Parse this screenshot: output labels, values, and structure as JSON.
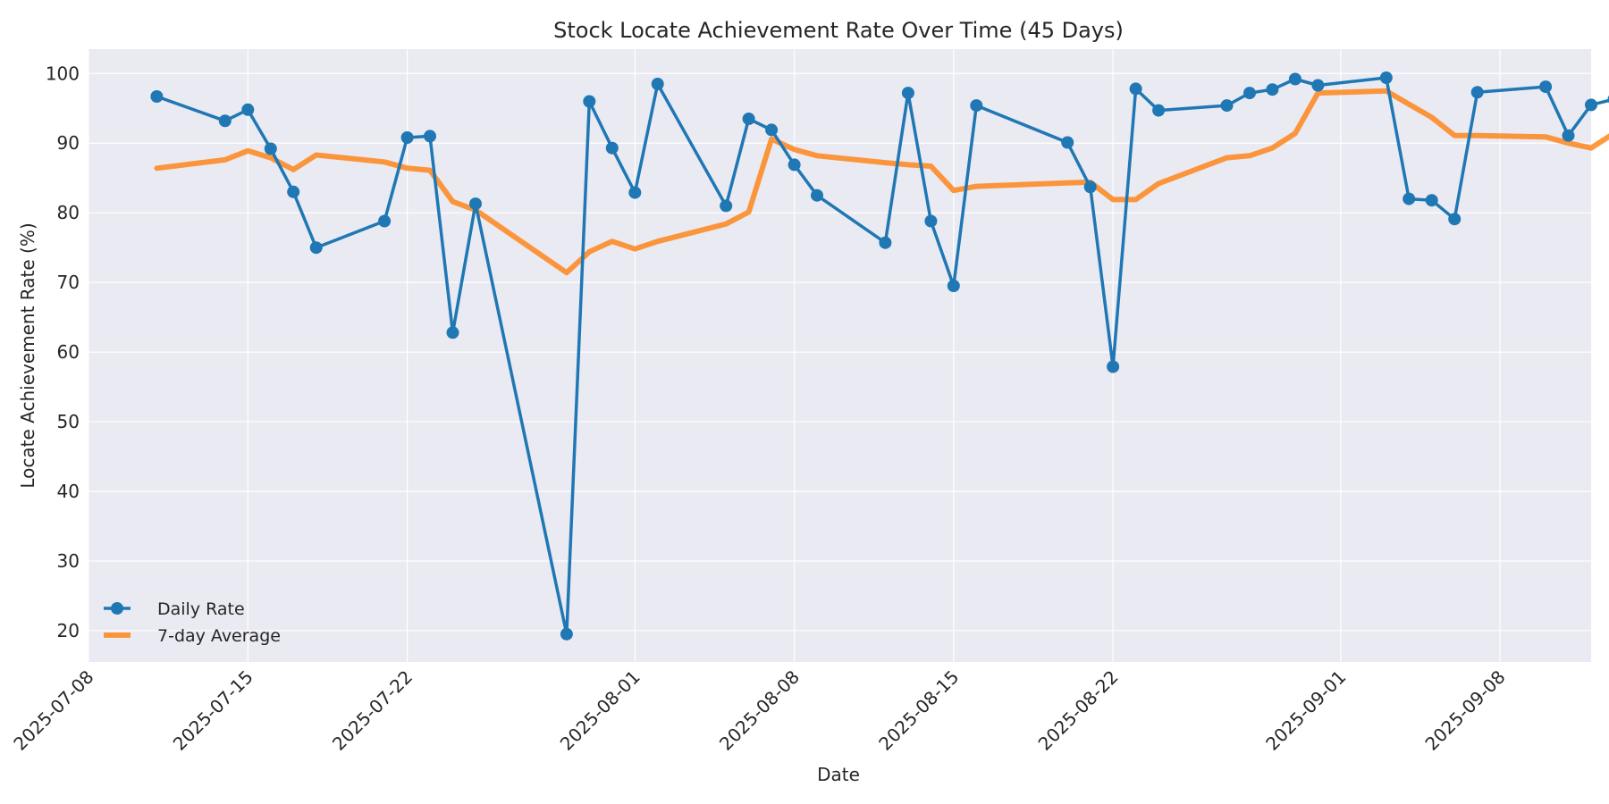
{
  "chart_data": {
    "type": "line",
    "title": "Stock Locate Achievement Rate Over Time (45 Days)",
    "xlabel": "Date",
    "ylabel": "Locate Achievement Rate (%)",
    "x_ticks": [
      "2025-07-08",
      "2025-07-15",
      "2025-07-22",
      "2025-08-01",
      "2025-08-08",
      "2025-08-15",
      "2025-08-22",
      "2025-09-01",
      "2025-09-08"
    ],
    "y_ticks": [
      20,
      30,
      40,
      50,
      60,
      70,
      80,
      90,
      100
    ],
    "xlim": [
      "2025-07-08",
      "2025-09-12"
    ],
    "ylim": [
      15.5,
      103.5
    ],
    "grid": true,
    "legend_position": "lower-left",
    "x": [
      "2025-07-11",
      "2025-07-14",
      "2025-07-15",
      "2025-07-16",
      "2025-07-17",
      "2025-07-18",
      "2025-07-21",
      "2025-07-22",
      "2025-07-23",
      "2025-07-24",
      "2025-07-25",
      "2025-07-29",
      "2025-07-30",
      "2025-07-31",
      "2025-08-01",
      "2025-08-02",
      "2025-08-05",
      "2025-08-06",
      "2025-08-07",
      "2025-08-08",
      "2025-08-09",
      "2025-08-12",
      "2025-08-13",
      "2025-08-14",
      "2025-08-15",
      "2025-08-16",
      "2025-08-20",
      "2025-08-21",
      "2025-08-22",
      "2025-08-23",
      "2025-08-24",
      "2025-08-27",
      "2025-08-28",
      "2025-08-29",
      "2025-08-30",
      "2025-08-31",
      "2025-09-03",
      "2025-09-04",
      "2025-09-05",
      "2025-09-06",
      "2025-09-07",
      "2025-09-10",
      "2025-09-11",
      "2025-09-12",
      "2025-09-13"
    ],
    "series": [
      {
        "name": "Daily Rate",
        "color": "#1f77b4",
        "marker": "circle",
        "values": [
          96.7,
          93.2,
          94.8,
          89.2,
          83.0,
          75.0,
          78.8,
          90.8,
          91.0,
          62.8,
          81.3,
          19.5,
          96.0,
          89.3,
          82.9,
          98.5,
          81.0,
          93.5,
          91.9,
          86.9,
          82.5,
          75.7,
          97.2,
          78.8,
          69.5,
          95.4,
          90.1,
          83.7,
          57.9,
          97.8,
          94.7,
          95.4,
          97.2,
          97.7,
          99.2,
          98.3,
          99.4,
          82.0,
          81.8,
          79.1,
          97.3,
          98.1,
          91.1,
          95.5,
          96.3
        ]
      },
      {
        "name": "7-day Average",
        "color": "#ff7f0e",
        "values": [
          86.4,
          87.6,
          88.9,
          87.9,
          86.2,
          88.3,
          87.3,
          86.4,
          86.1,
          81.6,
          80.4,
          71.4,
          74.4,
          75.9,
          74.8,
          75.9,
          78.4,
          80.1,
          90.6,
          89.1,
          88.2,
          87.2,
          86.9,
          86.7,
          83.2,
          83.8,
          84.3,
          84.4,
          81.9,
          81.9,
          84.2,
          87.9,
          88.2,
          89.3,
          91.4,
          97.2,
          97.5,
          95.6,
          93.7,
          91.1,
          91.1,
          90.9,
          90.0,
          89.3,
          91.4
        ]
      }
    ]
  }
}
